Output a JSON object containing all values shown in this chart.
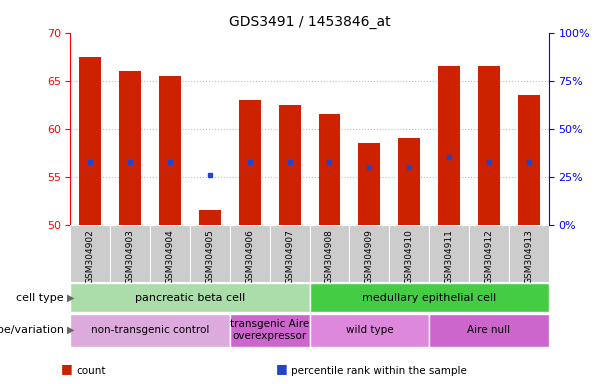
{
  "title": "GDS3491 / 1453846_at",
  "samples": [
    "GSM304902",
    "GSM304903",
    "GSM304904",
    "GSM304905",
    "GSM304906",
    "GSM304907",
    "GSM304908",
    "GSM304909",
    "GSM304910",
    "GSM304911",
    "GSM304912",
    "GSM304913"
  ],
  "bar_bottoms": [
    50,
    50,
    50,
    50,
    50,
    50,
    50,
    50,
    50,
    50,
    50,
    50
  ],
  "bar_tops": [
    67.5,
    66.0,
    65.5,
    51.5,
    63.0,
    62.5,
    61.5,
    58.5,
    59.0,
    66.5,
    66.5,
    63.5
  ],
  "percentile_values": [
    56.5,
    56.5,
    56.5,
    55.2,
    56.5,
    56.5,
    56.5,
    56.0,
    56.0,
    57.0,
    56.5,
    56.5
  ],
  "ylim": [
    50,
    70
  ],
  "yticks": [
    50,
    55,
    60,
    65,
    70
  ],
  "right_ytick_positions": [
    50,
    55,
    60,
    65,
    70
  ],
  "right_ytick_labels": [
    "0%",
    "25%",
    "50%",
    "75%",
    "100%"
  ],
  "bar_color": "#cc2200",
  "percentile_color": "#2244cc",
  "grid_color": "#bbbbbb",
  "tick_bg_color": "#cccccc",
  "cell_type_groups": [
    {
      "label": "pancreatic beta cell",
      "start": 0,
      "end": 6,
      "color": "#aaddaa"
    },
    {
      "label": "medullary epithelial cell",
      "start": 6,
      "end": 12,
      "color": "#44cc44"
    }
  ],
  "genotype_groups": [
    {
      "label": "non-transgenic control",
      "start": 0,
      "end": 4,
      "color": "#ddaadd"
    },
    {
      "label": "transgenic Aire\noverexpressor",
      "start": 4,
      "end": 6,
      "color": "#cc66cc"
    },
    {
      "label": "wild type",
      "start": 6,
      "end": 9,
      "color": "#dd88dd"
    },
    {
      "label": "Aire null",
      "start": 9,
      "end": 12,
      "color": "#cc66cc"
    }
  ],
  "legend_items": [
    {
      "label": "count",
      "color": "#cc2200"
    },
    {
      "label": "percentile rank within the sample",
      "color": "#2244cc"
    }
  ],
  "tick_label_color": "#555555",
  "bar_width": 0.55,
  "left_labels": [
    {
      "text": "cell type",
      "row": 0
    },
    {
      "text": "genotype/variation",
      "row": 1
    }
  ]
}
